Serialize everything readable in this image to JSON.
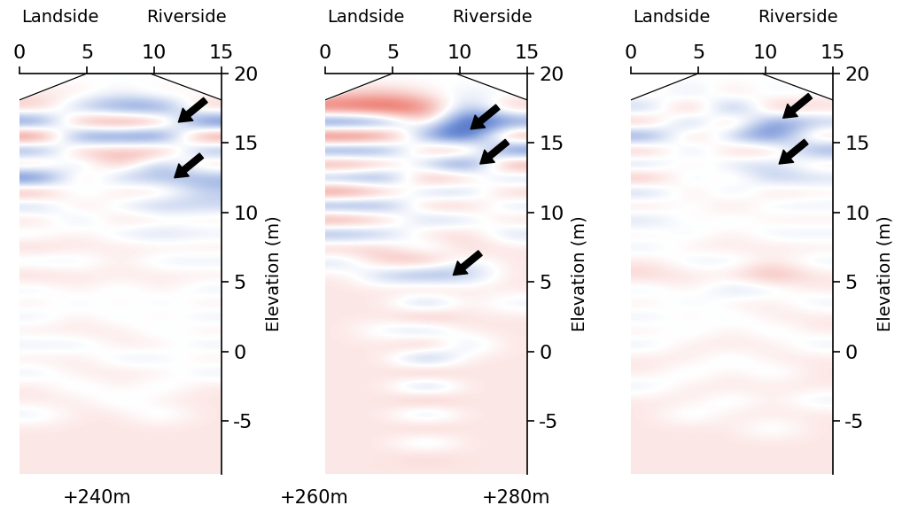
{
  "chart_data": [
    {
      "type": "heatmap",
      "annotations": [
        "Landside",
        "Riverside"
      ],
      "annotation_x": [
        3,
        12.4
      ],
      "ylabel": "Elevation (m)",
      "xlim": [
        0,
        15
      ],
      "xticks": [
        0,
        5,
        10,
        15
      ],
      "ylim": [
        -8.8,
        20
      ],
      "yticks": [
        -5,
        0,
        5,
        10,
        15,
        20
      ],
      "x_edges": [
        0,
        3,
        6,
        9,
        12,
        15
      ],
      "y_top": 20,
      "y_bottom": -9,
      "color_range": [
        -1,
        1
      ],
      "surface": {
        "x": [
          0,
          5,
          9.7,
          15
        ],
        "y": [
          18.1,
          20,
          20,
          18.1
        ]
      },
      "arrows": [
        [
          11.8,
          16.5
        ],
        [
          11.5,
          12.5
        ]
      ],
      "cells": [
        [
          0.0,
          0.0,
          0.0,
          0.0,
          0.0
        ],
        [
          0.1,
          0.1,
          -0.1,
          0.1,
          0.0
        ],
        [
          0.3,
          -0.3,
          -0.5,
          -0.6,
          0.3
        ],
        [
          -0.7,
          0.5,
          0.6,
          0.5,
          -0.8
        ],
        [
          0.8,
          -0.7,
          -0.6,
          -0.8,
          0.7
        ],
        [
          -0.6,
          0.4,
          0.3,
          0.5,
          -0.5
        ],
        [
          0.4,
          -0.3,
          0.4,
          -0.4,
          0.3
        ],
        [
          -0.8,
          0.3,
          -0.3,
          -0.3,
          -0.4
        ],
        [
          0.5,
          -0.2,
          0.2,
          0.2,
          -0.2
        ],
        [
          -0.3,
          0.2,
          -0.1,
          -0.3,
          -0.2
        ],
        [
          0.2,
          -0.2,
          0.2,
          0.1,
          0.1
        ],
        [
          -0.1,
          0.1,
          -0.1,
          -0.2,
          -0.1
        ],
        [
          0.2,
          0.1,
          0.1,
          0.1,
          0.1
        ],
        [
          -0.1,
          -0.1,
          0.1,
          -0.1,
          -0.1
        ],
        [
          0.2,
          0.1,
          0.1,
          0.1,
          0.1
        ],
        [
          -0.1,
          0.1,
          -0.1,
          0.1,
          -0.1
        ],
        [
          0.1,
          -0.1,
          0.1,
          -0.1,
          0.1
        ],
        [
          -0.1,
          0.1,
          -0.1,
          0.1,
          -0.1
        ],
        [
          0.1,
          0.1,
          0.1,
          -0.1,
          0.1
        ],
        [
          -0.1,
          -0.1,
          0.1,
          0.1,
          -0.1
        ],
        [
          0.1,
          0.1,
          -0.1,
          -0.1,
          0.1
        ],
        [
          -0.1,
          0.1,
          0.1,
          0.1,
          -0.1
        ],
        [
          0.1,
          -0.1,
          0.1,
          -0.1,
          0.1
        ],
        [
          0.1,
          0.1,
          -0.1,
          0.1,
          0.1
        ],
        [
          -0.1,
          0.1,
          0.1,
          -0.1,
          0.1
        ],
        [
          0.1,
          0.1,
          0.1,
          0.1,
          0.1
        ],
        [
          0.1,
          0.1,
          0.1,
          0.1,
          0.1
        ],
        [
          0.1,
          0.1,
          0.1,
          0.1,
          0.1
        ],
        [
          0.1,
          0.1,
          0.1,
          0.1,
          0.1
        ]
      ]
    },
    {
      "type": "heatmap",
      "annotations": [
        "Landside",
        "Riverside"
      ],
      "annotation_x": [
        3,
        12.4
      ],
      "ylabel": "Elevation (m)",
      "xlim": [
        0,
        15
      ],
      "xticks": [
        0,
        5,
        10,
        15
      ],
      "ylim": [
        -8.8,
        20
      ],
      "yticks": [
        -5,
        0,
        5,
        10,
        15,
        20
      ],
      "x_edges": [
        0,
        3,
        6,
        9,
        12,
        15
      ],
      "y_top": 20,
      "y_bottom": -9,
      "color_range": [
        -1,
        1
      ],
      "surface": {
        "x": [
          0,
          5,
          9.7,
          15
        ],
        "y": [
          18.1,
          20,
          20,
          18.1
        ]
      },
      "arrows": [
        [
          10.8,
          16.0
        ],
        [
          11.5,
          13.5
        ],
        [
          9.5,
          5.5
        ]
      ],
      "cells": [
        [
          0.0,
          0.0,
          0.0,
          0.0,
          0.0
        ],
        [
          0.2,
          0.3,
          0.1,
          -0.1,
          0.0
        ],
        [
          0.7,
          0.8,
          0.6,
          -0.4,
          0.3
        ],
        [
          -0.8,
          -0.6,
          0.3,
          -0.9,
          -0.6
        ],
        [
          0.9,
          0.7,
          -0.5,
          -0.9,
          0.6
        ],
        [
          -0.7,
          -0.6,
          0.4,
          0.5,
          -0.8
        ],
        [
          0.6,
          0.4,
          -0.3,
          -0.8,
          0.6
        ],
        [
          -0.5,
          -0.6,
          0.5,
          0.3,
          -0.3
        ],
        [
          0.7,
          0.4,
          -0.3,
          -0.3,
          0.3
        ],
        [
          -0.6,
          -0.5,
          0.3,
          0.3,
          -0.2
        ],
        [
          0.6,
          0.3,
          -0.3,
          -0.2,
          0.2
        ],
        [
          -0.5,
          -0.3,
          0.2,
          0.2,
          -0.2
        ],
        [
          0.3,
          0.2,
          -0.2,
          0.2,
          0.1
        ],
        [
          -0.2,
          0.3,
          0.4,
          -0.1,
          0.1
        ],
        [
          0.1,
          -0.3,
          -0.5,
          -0.3,
          0.1
        ],
        [
          0.1,
          0.1,
          0.3,
          0.1,
          0.1
        ],
        [
          0.1,
          0.1,
          -0.4,
          0.1,
          -0.1
        ],
        [
          0.1,
          0.1,
          0.4,
          0.1,
          0.1
        ],
        [
          0.1,
          -0.1,
          -0.3,
          0.1,
          0.1
        ],
        [
          0.1,
          0.1,
          0.4,
          -0.2,
          0.1
        ],
        [
          0.1,
          0.1,
          -0.5,
          0.1,
          0.1
        ],
        [
          0.1,
          0.1,
          0.4,
          0.1,
          0.1
        ],
        [
          0.1,
          0.1,
          -0.4,
          0.1,
          0.1
        ],
        [
          0.1,
          0.1,
          0.4,
          0.1,
          0.1
        ],
        [
          0.1,
          0.1,
          -0.3,
          0.1,
          0.1
        ],
        [
          0.1,
          0.1,
          0.3,
          0.1,
          0.1
        ],
        [
          0.1,
          0.1,
          -0.2,
          0.1,
          0.1
        ],
        [
          0.1,
          0.1,
          0.2,
          0.1,
          0.1
        ],
        [
          0.1,
          0.1,
          0.1,
          0.1,
          0.1
        ]
      ]
    },
    {
      "type": "heatmap",
      "annotations": [
        "Landside",
        "Riverside"
      ],
      "annotation_x": [
        3,
        12.4
      ],
      "ylabel": "Elevation (m)",
      "xlim": [
        0,
        15
      ],
      "xticks": [
        0,
        5,
        10,
        15
      ],
      "ylim": [
        -8.8,
        20
      ],
      "yticks": [
        -5,
        0,
        5,
        10,
        15,
        20
      ],
      "x_edges": [
        0,
        3,
        6,
        9,
        12,
        15
      ],
      "y_top": 20,
      "y_bottom": -9,
      "color_range": [
        -1,
        1
      ],
      "surface": {
        "x": [
          0,
          5,
          9.7,
          15
        ],
        "y": [
          18.1,
          20,
          20,
          18.1
        ]
      },
      "arrows": [
        [
          11.3,
          16.8
        ],
        [
          11.0,
          13.5
        ]
      ],
      "cells": [
        [
          0.0,
          0.0,
          0.0,
          0.0,
          0.0
        ],
        [
          0.1,
          -0.2,
          0.2,
          -0.1,
          0.0
        ],
        [
          -0.3,
          0.5,
          -0.6,
          0.4,
          0.2
        ],
        [
          0.4,
          -0.5,
          0.5,
          -0.6,
          -0.3
        ],
        [
          -0.6,
          0.4,
          -0.3,
          -0.7,
          0.3
        ],
        [
          0.4,
          -0.3,
          0.3,
          0.3,
          -0.5
        ],
        [
          -0.3,
          0.2,
          -0.2,
          -0.2,
          0.2
        ],
        [
          0.4,
          -0.2,
          0.2,
          -0.3,
          -0.2
        ],
        [
          -0.3,
          0.2,
          -0.2,
          0.2,
          0.1
        ],
        [
          0.2,
          -0.1,
          0.2,
          -0.1,
          -0.1
        ],
        [
          -0.2,
          0.1,
          -0.1,
          0.1,
          0.1
        ],
        [
          0.1,
          -0.1,
          0.1,
          -0.1,
          -0.1
        ],
        [
          -0.1,
          0.1,
          0.1,
          0.1,
          0.1
        ],
        [
          0.1,
          -0.1,
          -0.1,
          0.1,
          -0.1
        ],
        [
          0.2,
          0.1,
          0.1,
          0.4,
          0.1
        ],
        [
          -0.1,
          0.1,
          -0.2,
          -0.1,
          0.1
        ],
        [
          0.1,
          -0.1,
          0.1,
          0.1,
          -0.1
        ],
        [
          -0.1,
          0.1,
          -0.1,
          0.1,
          0.1
        ],
        [
          0.1,
          -0.1,
          0.1,
          -0.1,
          0.1
        ],
        [
          -0.1,
          0.1,
          0.1,
          0.1,
          -0.1
        ],
        [
          0.1,
          0.1,
          -0.1,
          0.1,
          0.1
        ],
        [
          0.1,
          -0.1,
          0.1,
          -0.1,
          0.1
        ],
        [
          -0.1,
          0.1,
          0.1,
          0.1,
          0.1
        ],
        [
          0.1,
          0.1,
          -0.1,
          0.1,
          -0.1
        ],
        [
          0.1,
          -0.1,
          0.1,
          0.1,
          0.1
        ],
        [
          0.1,
          0.1,
          0.1,
          -0.1,
          0.1
        ],
        [
          0.1,
          0.1,
          0.1,
          0.1,
          0.1
        ],
        [
          0.1,
          0.1,
          0.1,
          0.1,
          0.1
        ],
        [
          0.1,
          0.1,
          0.1,
          0.1,
          0.1
        ]
      ]
    }
  ],
  "stations": [
    "+240m",
    "+260m",
    "+280m"
  ]
}
